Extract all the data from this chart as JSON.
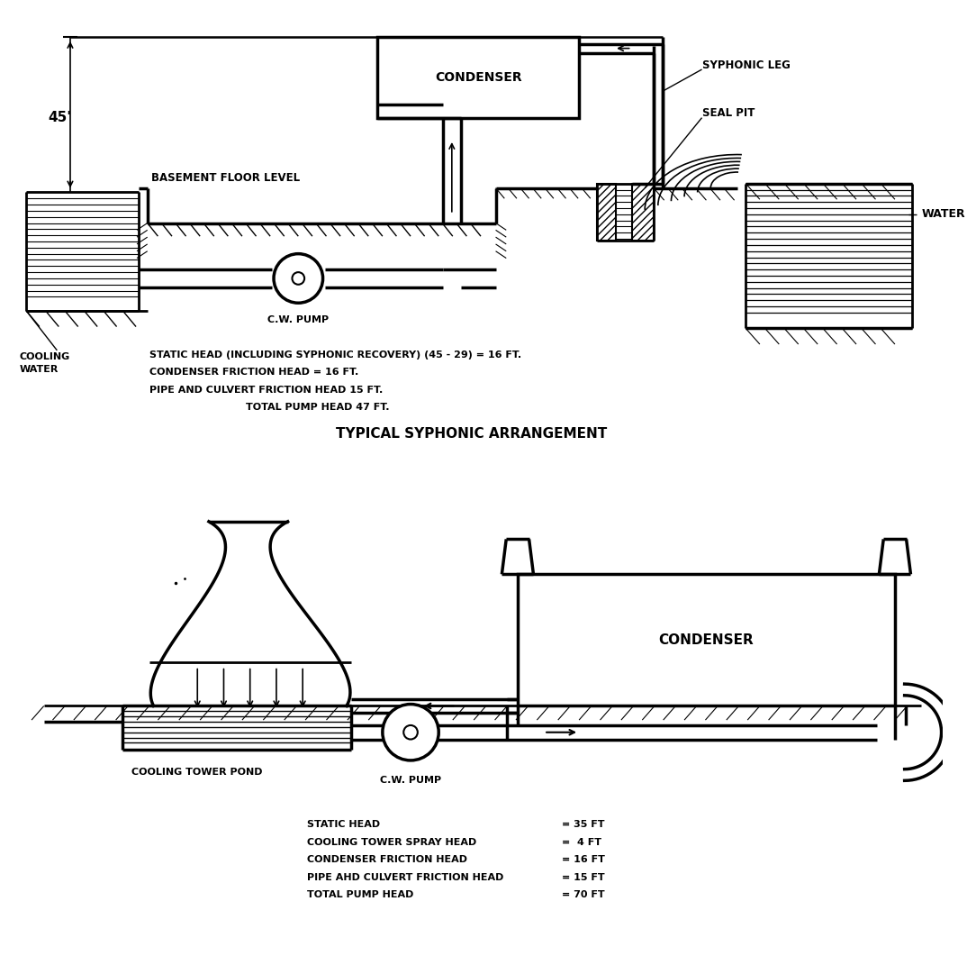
{
  "bg_color": "#ffffff",
  "line_color": "#000000",
  "title1": "TYPICAL SYPHONIC ARRANGEMENT",
  "text1_line1": "STATIC HEAD (INCLUDING SYPHONIC RECOVERY) (45 - 29) = 16 FT.",
  "text1_line2": "CONDENSER FRICTION HEAD = 16 FT.",
  "text1_line3": "PIPE AND CULVERT FRICTION HEAD 15 FT.",
  "text1_line4": "TOTAL PUMP HEAD 47 FT.",
  "text2_line1": "STATIC HEAD",
  "text2_line2": "COOLING TOWER SPRAY HEAD",
  "text2_line3": "CONDENSER FRICTION HEAD",
  "text2_line4": "PIPE AHD CULVERT FRICTION HEAD",
  "text2_line5": "TOTAL PUMP HEAD",
  "text2_val1": "= 35 FT",
  "text2_val2": "=  4 FT",
  "text2_val3": "= 16 FT",
  "text2_val4": "= 15 FT",
  "text2_val5": "= 70 FT",
  "label_45": "45'",
  "label_basement": "BASEMENT FLOOR LEVEL",
  "label_cw_pump1": "C.W. PUMP",
  "label_cw_pump2": "C.W. PUMP",
  "label_condenser1": "CONDENSER",
  "label_condenser2": "CONDENSER",
  "label_syphonic_leg": "SYPHONIC LEG",
  "label_seal_pit": "SEAL PIT",
  "label_water": "WATER",
  "label_cooling_water": "COOLING\nWATER",
  "label_cooling_tower_pond": "COOLING TOWER POND"
}
